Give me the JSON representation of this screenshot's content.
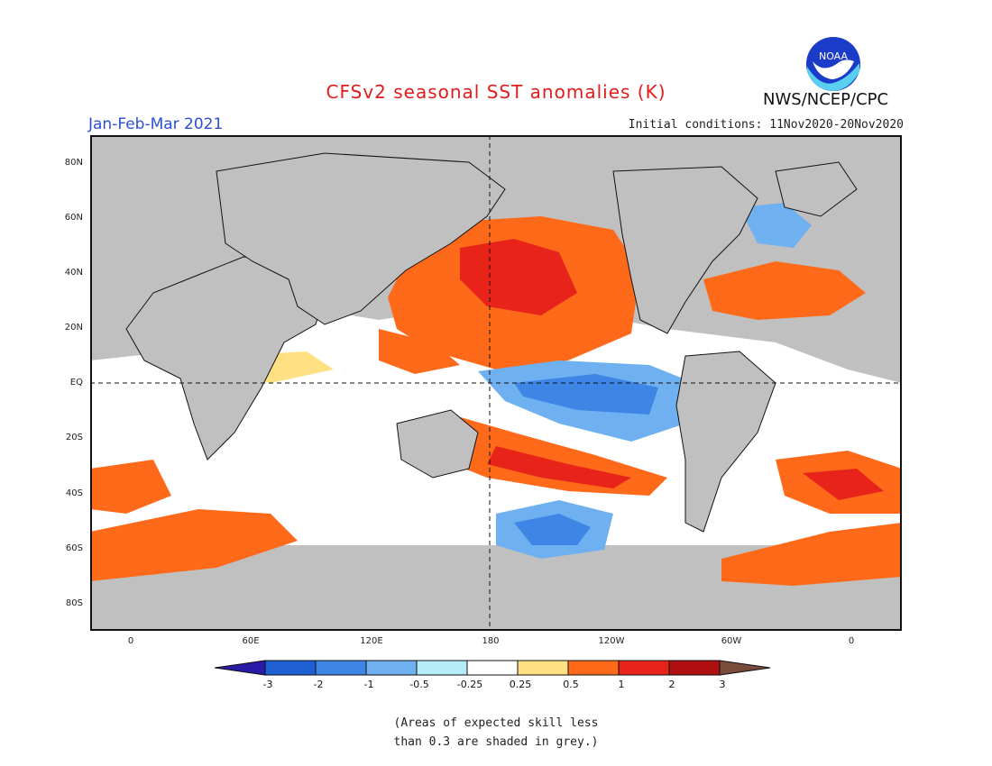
{
  "header": {
    "title": "CFSv2 seasonal SST anomalies (K)",
    "season": "Jan-Feb-Mar 2021",
    "initial_conditions": "Initial conditions: 11Nov2020-20Nov2020",
    "agency": "NWS/NCEP/CPC",
    "logo_text": "NOAA"
  },
  "map": {
    "projection": "cylindrical equidistant",
    "lat_labels": [
      "80N",
      "60N",
      "40N",
      "20N",
      "EQ",
      "20S",
      "40S",
      "60S",
      "80S"
    ],
    "lon_labels": [
      "0",
      "60E",
      "120E",
      "180",
      "120W",
      "60W",
      "0"
    ],
    "land_color": "#c0c0c0",
    "no_skill_color": "#c0c0c0"
  },
  "legend": {
    "ticks": [
      "-3",
      "-2",
      "-1",
      "-0.5",
      "-0.25",
      "0.25",
      "0.5",
      "1",
      "2",
      "3"
    ],
    "colors": [
      "#2a1aa8",
      "#1f5fd4",
      "#3d86e6",
      "#6fb0f0",
      "#b4ecf8",
      "#ffffff",
      "#ffe082",
      "#ff6a1a",
      "#e8241a",
      "#b01010",
      "#7a4a3a"
    ]
  },
  "note": {
    "line1": "(Areas of expected skill less",
    "line2": "than 0.3 are shaded in grey.)"
  }
}
